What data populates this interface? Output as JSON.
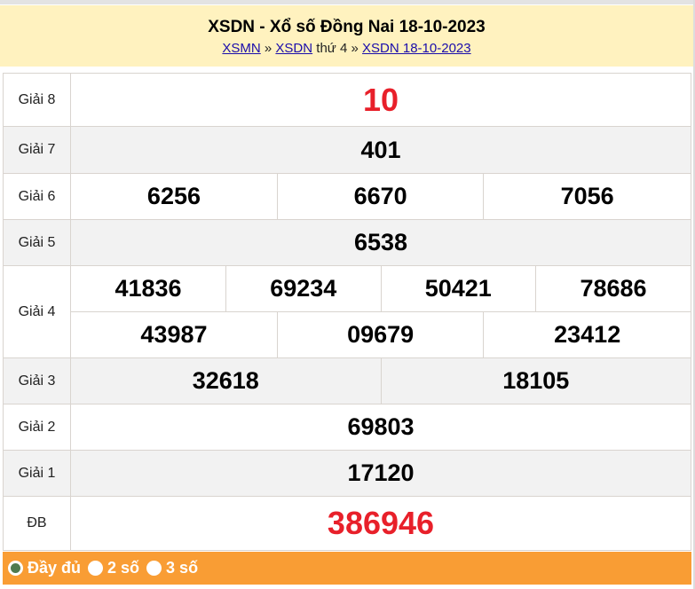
{
  "header": {
    "title": "XSDN - Xổ số Đồng Nai 18-10-2023",
    "crumb_1": "XSMN",
    "sep_1": "»",
    "crumb_2": "XSDN",
    "weekday": "thứ 4",
    "sep_2": "»",
    "crumb_3": "XSDN 18-10-2023"
  },
  "prizes": {
    "g8": {
      "label": "Giải 8",
      "numbers": [
        "10"
      ]
    },
    "g7": {
      "label": "Giải 7",
      "numbers": [
        "401"
      ]
    },
    "g6": {
      "label": "Giải 6",
      "numbers": [
        "6256",
        "6670",
        "7056"
      ]
    },
    "g5": {
      "label": "Giải 5",
      "numbers": [
        "6538"
      ]
    },
    "g4": {
      "label": "Giải 4",
      "numbers": [
        "41836",
        "69234",
        "50421",
        "78686",
        "43987",
        "09679",
        "23412"
      ]
    },
    "g3": {
      "label": "Giải 3",
      "numbers": [
        "32618",
        "18105"
      ]
    },
    "g2": {
      "label": "Giải 2",
      "numbers": [
        "69803"
      ]
    },
    "g1": {
      "label": "Giải 1",
      "numbers": [
        "17120"
      ]
    },
    "db": {
      "label": "ĐB",
      "numbers": [
        "386946"
      ]
    }
  },
  "footer": {
    "options": [
      {
        "label": "Đầy đủ",
        "selected": true
      },
      {
        "label": "2 số",
        "selected": false
      },
      {
        "label": "3 số",
        "selected": false
      }
    ]
  },
  "colors": {
    "header_bg": "#fff2bf",
    "footer_bg": "#f99d34",
    "highlight": "#e8202a"
  }
}
